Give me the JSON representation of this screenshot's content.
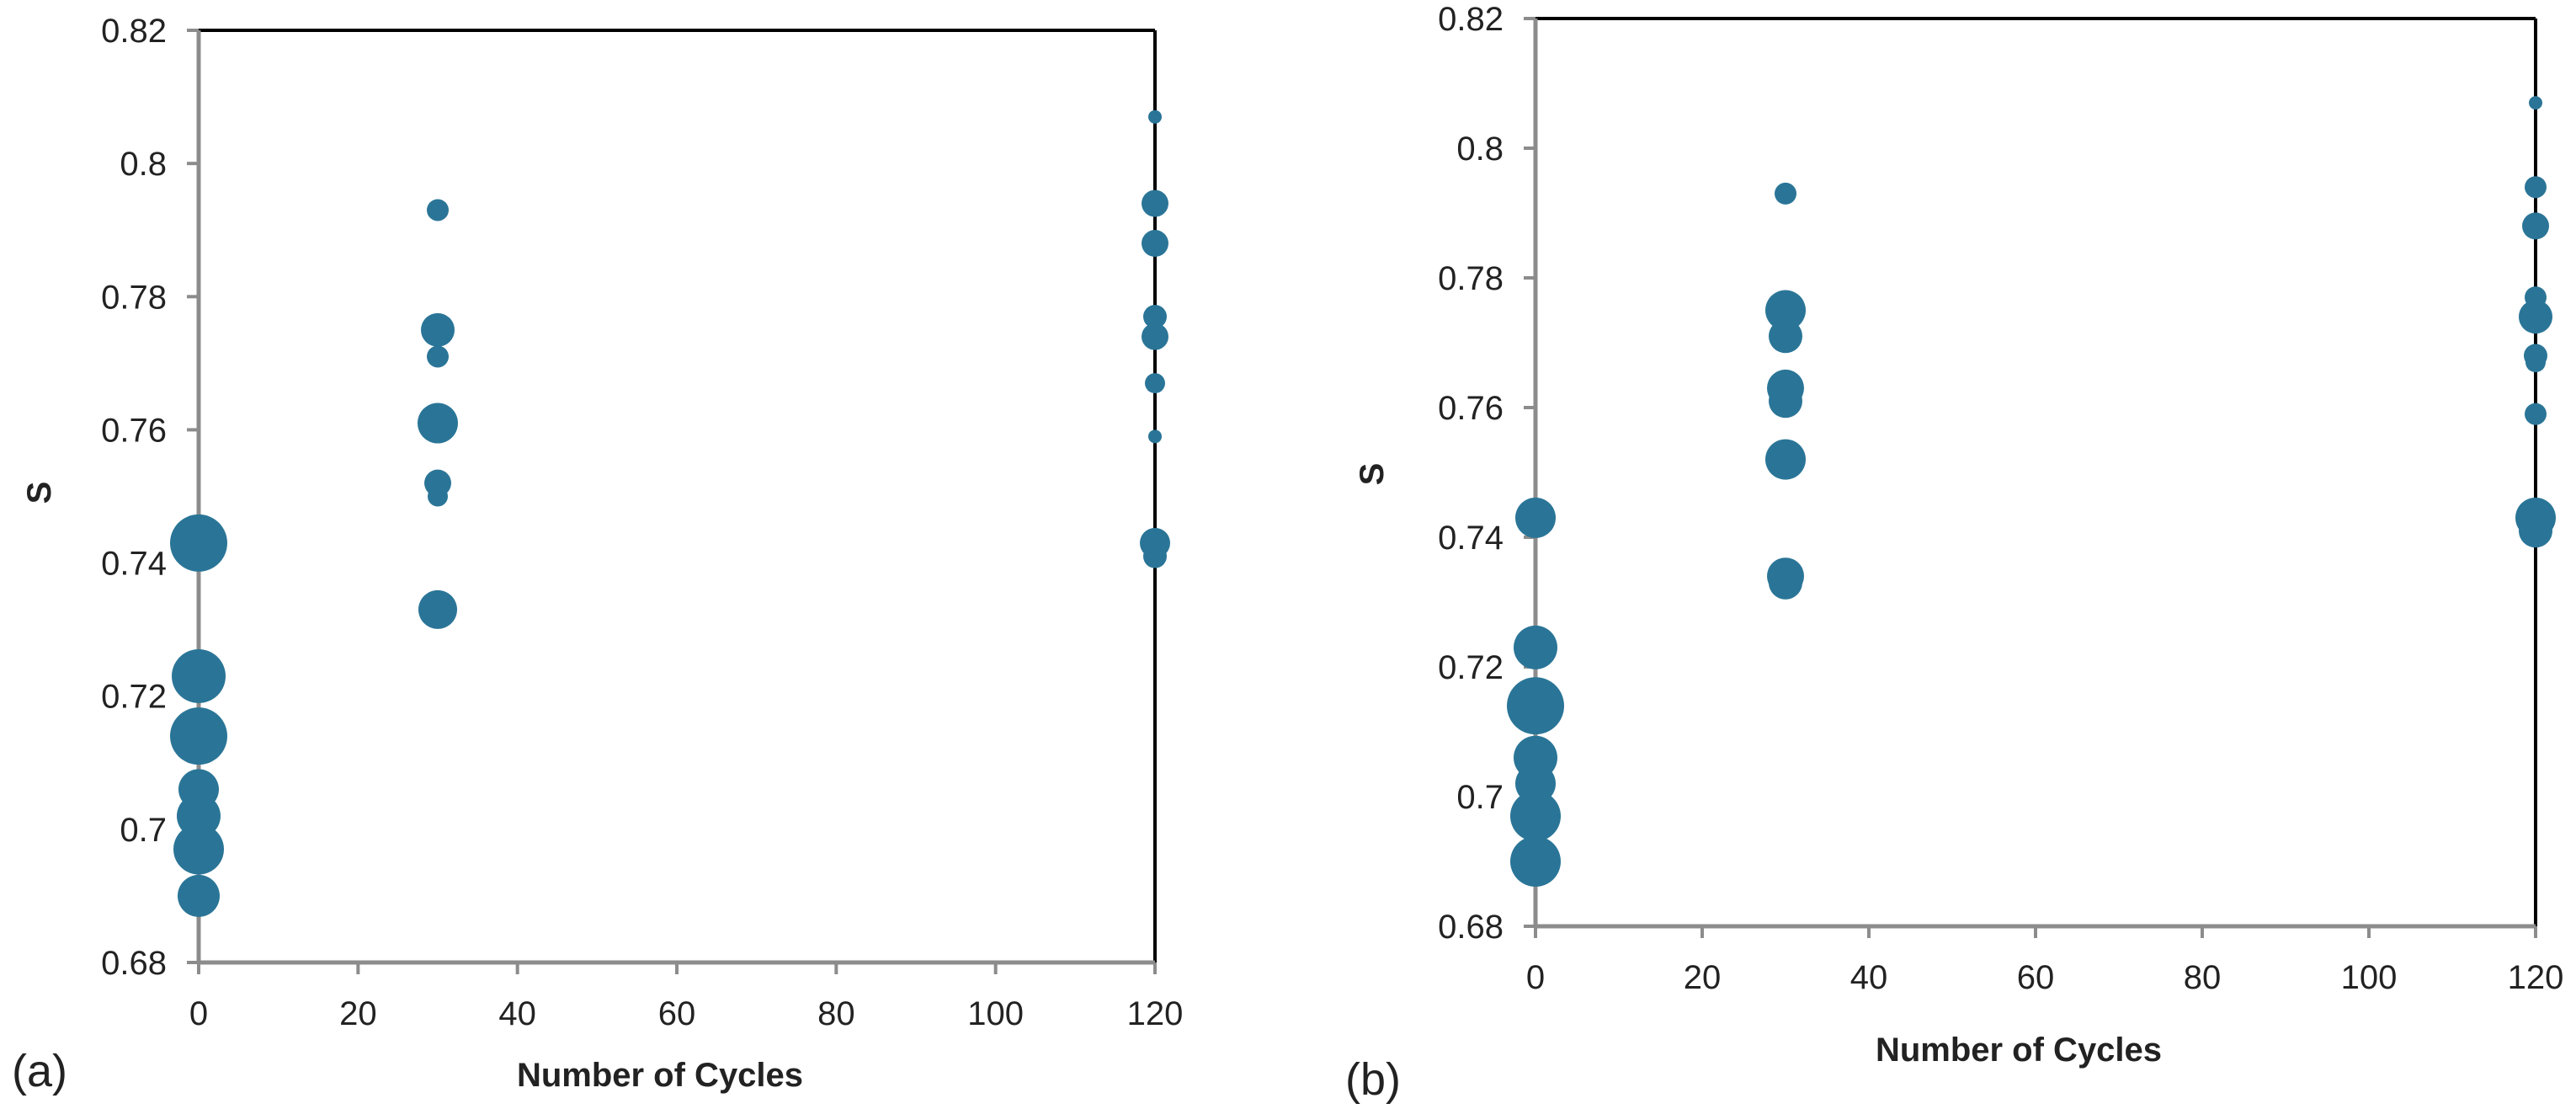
{
  "chart_data": [
    {
      "type": "bubble-scatter",
      "panel_label": "(a)",
      "title": "",
      "xlabel": "Number of Cycles",
      "ylabel": "S",
      "xlim": [
        0,
        120
      ],
      "ylim": [
        0.68,
        0.82
      ],
      "xticks": [
        0,
        20,
        40,
        60,
        80,
        100,
        120
      ],
      "yticks": [
        0.68,
        0.7,
        0.72,
        0.74,
        0.76,
        0.78,
        0.8,
        0.82
      ],
      "xtick_labels": [
        "0",
        "20",
        "40",
        "60",
        "80",
        "100",
        "120"
      ],
      "ytick_labels": [
        "0.68",
        "0.7",
        "0.72",
        "0.74",
        "0.76",
        "0.78",
        "0.8",
        "0.82"
      ],
      "grid": false,
      "marker_color": "#2a7597",
      "points": [
        {
          "x": 0,
          "y": 0.743,
          "size": 34
        },
        {
          "x": 0,
          "y": 0.723,
          "size": 32
        },
        {
          "x": 0,
          "y": 0.714,
          "size": 34
        },
        {
          "x": 0,
          "y": 0.706,
          "size": 24
        },
        {
          "x": 0,
          "y": 0.702,
          "size": 26
        },
        {
          "x": 0,
          "y": 0.697,
          "size": 30
        },
        {
          "x": 0,
          "y": 0.69,
          "size": 25
        },
        {
          "x": 30,
          "y": 0.793,
          "size": 13
        },
        {
          "x": 30,
          "y": 0.775,
          "size": 20
        },
        {
          "x": 30,
          "y": 0.771,
          "size": 13
        },
        {
          "x": 30,
          "y": 0.761,
          "size": 24
        },
        {
          "x": 30,
          "y": 0.752,
          "size": 16
        },
        {
          "x": 30,
          "y": 0.75,
          "size": 12
        },
        {
          "x": 30,
          "y": 0.733,
          "size": 23
        },
        {
          "x": 120,
          "y": 0.807,
          "size": 8
        },
        {
          "x": 120,
          "y": 0.794,
          "size": 16
        },
        {
          "x": 120,
          "y": 0.788,
          "size": 16
        },
        {
          "x": 120,
          "y": 0.777,
          "size": 14
        },
        {
          "x": 120,
          "y": 0.774,
          "size": 16
        },
        {
          "x": 120,
          "y": 0.767,
          "size": 12
        },
        {
          "x": 120,
          "y": 0.759,
          "size": 8
        },
        {
          "x": 120,
          "y": 0.743,
          "size": 18
        },
        {
          "x": 120,
          "y": 0.741,
          "size": 14
        }
      ]
    },
    {
      "type": "bubble-scatter",
      "panel_label": "(b)",
      "title": "",
      "xlabel": "Number of Cycles",
      "ylabel": "S",
      "xlim": [
        0,
        120
      ],
      "ylim": [
        0.68,
        0.82
      ],
      "xticks": [
        0,
        20,
        40,
        60,
        80,
        100,
        120
      ],
      "yticks": [
        0.68,
        0.7,
        0.72,
        0.74,
        0.76,
        0.78,
        0.8,
        0.82
      ],
      "xtick_labels": [
        "0",
        "20",
        "40",
        "60",
        "80",
        "100",
        "120"
      ],
      "ytick_labels": [
        "0.68",
        "0.7",
        "0.72",
        "0.74",
        "0.76",
        "0.78",
        "0.8",
        "0.82"
      ],
      "grid": false,
      "marker_color": "#2a7597",
      "points": [
        {
          "x": 0,
          "y": 0.743,
          "size": 24
        },
        {
          "x": 0,
          "y": 0.723,
          "size": 26
        },
        {
          "x": 0,
          "y": 0.714,
          "size": 34
        },
        {
          "x": 0,
          "y": 0.706,
          "size": 26
        },
        {
          "x": 0,
          "y": 0.702,
          "size": 24
        },
        {
          "x": 0,
          "y": 0.697,
          "size": 30
        },
        {
          "x": 0,
          "y": 0.69,
          "size": 30
        },
        {
          "x": 30,
          "y": 0.793,
          "size": 13
        },
        {
          "x": 30,
          "y": 0.775,
          "size": 24
        },
        {
          "x": 30,
          "y": 0.771,
          "size": 20
        },
        {
          "x": 30,
          "y": 0.763,
          "size": 22
        },
        {
          "x": 30,
          "y": 0.761,
          "size": 20
        },
        {
          "x": 30,
          "y": 0.752,
          "size": 24
        },
        {
          "x": 30,
          "y": 0.734,
          "size": 22
        },
        {
          "x": 30,
          "y": 0.733,
          "size": 20
        },
        {
          "x": 120,
          "y": 0.807,
          "size": 8
        },
        {
          "x": 120,
          "y": 0.794,
          "size": 13
        },
        {
          "x": 120,
          "y": 0.788,
          "size": 16
        },
        {
          "x": 120,
          "y": 0.777,
          "size": 13
        },
        {
          "x": 120,
          "y": 0.774,
          "size": 20
        },
        {
          "x": 120,
          "y": 0.768,
          "size": 14
        },
        {
          "x": 120,
          "y": 0.767,
          "size": 12
        },
        {
          "x": 120,
          "y": 0.759,
          "size": 13
        },
        {
          "x": 120,
          "y": 0.743,
          "size": 24
        },
        {
          "x": 120,
          "y": 0.741,
          "size": 20
        }
      ]
    }
  ]
}
